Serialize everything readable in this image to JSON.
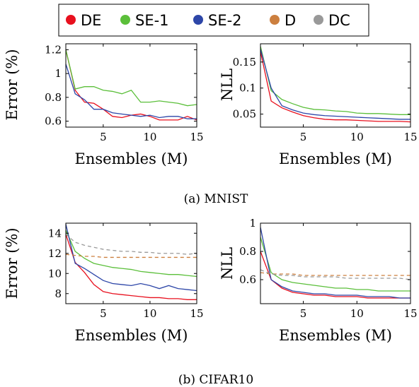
{
  "legend": [
    {
      "name": "DE",
      "color": "#e8101e"
    },
    {
      "name": "SE-1",
      "color": "#5bbf3a"
    },
    {
      "name": "SE-2",
      "color": "#2d46a8"
    },
    {
      "name": "D",
      "color": "#cc7f3f"
    },
    {
      "name": "DC",
      "color": "#999999"
    }
  ],
  "captions": [
    "(a) MNIST",
    "(b) CIFAR10"
  ],
  "chart_data": [
    {
      "type": "line",
      "dataset": "MNIST",
      "xlabel": "Ensembles (M)",
      "ylabel": "Error (%)",
      "xlim": [
        1,
        15
      ],
      "ylim": [
        0.55,
        1.25
      ],
      "xticks": [
        "5",
        "10",
        "15"
      ],
      "yticks": [
        "0.6",
        "0.8",
        "1",
        "1.2"
      ],
      "x": [
        1,
        2,
        3,
        4,
        5,
        6,
        7,
        8,
        9,
        10,
        11,
        12,
        13,
        14,
        15
      ],
      "series": [
        {
          "name": "DE",
          "color": "#e8101e",
          "dashed": false,
          "values": [
            1.2,
            0.86,
            0.76,
            0.75,
            0.7,
            0.64,
            0.63,
            0.65,
            0.66,
            0.64,
            0.61,
            0.61,
            0.61,
            0.64,
            0.61
          ]
        },
        {
          "name": "SE-1",
          "color": "#5bbf3a",
          "dashed": false,
          "values": [
            1.2,
            0.87,
            0.89,
            0.89,
            0.86,
            0.85,
            0.83,
            0.86,
            0.76,
            0.76,
            0.77,
            0.76,
            0.75,
            0.73,
            0.74
          ]
        },
        {
          "name": "SE-2",
          "color": "#2d46a8",
          "dashed": false,
          "values": [
            1.08,
            0.83,
            0.78,
            0.7,
            0.7,
            0.67,
            0.66,
            0.65,
            0.64,
            0.65,
            0.63,
            0.64,
            0.64,
            0.62,
            0.62
          ]
        }
      ]
    },
    {
      "type": "line",
      "dataset": "MNIST",
      "xlabel": "Ensembles (M)",
      "ylabel": "NLL",
      "xlim": [
        1,
        15
      ],
      "ylim": [
        0.025,
        0.185
      ],
      "xticks": [
        "5",
        "10",
        "15"
      ],
      "yticks": [
        "0.05",
        "0.1",
        "0.15"
      ],
      "x": [
        1,
        2,
        3,
        4,
        5,
        6,
        7,
        8,
        9,
        10,
        11,
        12,
        13,
        14,
        15
      ],
      "series": [
        {
          "name": "DE",
          "color": "#e8101e",
          "dashed": false,
          "values": [
            0.17,
            0.075,
            0.062,
            0.054,
            0.047,
            0.043,
            0.04,
            0.039,
            0.039,
            0.038,
            0.037,
            0.036,
            0.036,
            0.036,
            0.035
          ]
        },
        {
          "name": "SE-1",
          "color": "#5bbf3a",
          "dashed": false,
          "values": [
            0.18,
            0.095,
            0.078,
            0.07,
            0.063,
            0.059,
            0.058,
            0.056,
            0.055,
            0.052,
            0.051,
            0.051,
            0.05,
            0.049,
            0.049
          ]
        },
        {
          "name": "SE-2",
          "color": "#2d46a8",
          "dashed": false,
          "values": [
            0.175,
            0.1,
            0.066,
            0.058,
            0.052,
            0.049,
            0.047,
            0.046,
            0.045,
            0.044,
            0.043,
            0.042,
            0.041,
            0.04,
            0.04
          ]
        }
      ]
    },
    {
      "type": "line",
      "dataset": "CIFAR10",
      "xlabel": "Ensembles (M)",
      "ylabel": "Error (%)",
      "xlim": [
        1,
        15
      ],
      "ylim": [
        7,
        15
      ],
      "xticks": [
        "5",
        "10",
        "15"
      ],
      "yticks": [
        "8",
        "10",
        "12",
        "14"
      ],
      "x": [
        1,
        2,
        3,
        4,
        5,
        6,
        7,
        8,
        9,
        10,
        11,
        12,
        13,
        14,
        15
      ],
      "series": [
        {
          "name": "DE",
          "color": "#e8101e",
          "dashed": false,
          "values": [
            13.9,
            11.1,
            10.1,
            8.9,
            8.2,
            8.0,
            7.9,
            7.8,
            7.7,
            7.6,
            7.6,
            7.5,
            7.5,
            7.4,
            7.4
          ]
        },
        {
          "name": "SE-1",
          "color": "#5bbf3a",
          "dashed": false,
          "values": [
            14.3,
            12.2,
            11.5,
            11.0,
            10.8,
            10.6,
            10.5,
            10.4,
            10.2,
            10.1,
            10.0,
            9.9,
            9.9,
            9.8,
            9.7
          ]
        },
        {
          "name": "SE-2",
          "color": "#2d46a8",
          "dashed": false,
          "values": [
            14.9,
            11.0,
            10.5,
            9.9,
            9.3,
            9.0,
            8.9,
            8.8,
            9.0,
            8.8,
            8.5,
            8.8,
            8.5,
            8.4,
            8.3
          ]
        },
        {
          "name": "D",
          "color": "#cc7f3f",
          "dashed": true,
          "values": [
            11.9,
            11.8,
            11.7,
            11.7,
            11.6,
            11.6,
            11.6,
            11.6,
            11.6,
            11.6,
            11.6,
            11.6,
            11.6,
            11.6,
            11.6
          ]
        },
        {
          "name": "DC",
          "color": "#999999",
          "dashed": true,
          "values": [
            13.9,
            13.1,
            12.8,
            12.6,
            12.4,
            12.3,
            12.2,
            12.2,
            12.1,
            12.1,
            12.0,
            12.0,
            12.0,
            11.9,
            12.0
          ]
        }
      ]
    },
    {
      "type": "line",
      "dataset": "CIFAR10",
      "xlabel": "Ensembles (M)",
      "ylabel": "NLL",
      "xlim": [
        1,
        15
      ],
      "ylim": [
        0.43,
        1.0
      ],
      "xticks": [
        "5",
        "10",
        "15"
      ],
      "yticks": [
        "0.6",
        "0.8",
        "1"
      ],
      "x": [
        1,
        2,
        3,
        4,
        5,
        6,
        7,
        8,
        9,
        10,
        11,
        12,
        13,
        14,
        15
      ],
      "series": [
        {
          "name": "DE",
          "color": "#e8101e",
          "dashed": false,
          "values": [
            0.8,
            0.6,
            0.54,
            0.51,
            0.5,
            0.49,
            0.49,
            0.48,
            0.48,
            0.48,
            0.47,
            0.47,
            0.47,
            0.47,
            0.47
          ]
        },
        {
          "name": "SE-1",
          "color": "#5bbf3a",
          "dashed": false,
          "values": [
            0.9,
            0.65,
            0.6,
            0.58,
            0.57,
            0.56,
            0.55,
            0.54,
            0.54,
            0.53,
            0.53,
            0.52,
            0.52,
            0.52,
            0.52
          ]
        },
        {
          "name": "SE-2",
          "color": "#2d46a8",
          "dashed": false,
          "values": [
            0.97,
            0.6,
            0.55,
            0.52,
            0.51,
            0.5,
            0.5,
            0.49,
            0.49,
            0.49,
            0.48,
            0.48,
            0.48,
            0.47,
            0.47
          ]
        },
        {
          "name": "D",
          "color": "#cc7f3f",
          "dashed": true,
          "values": [
            0.65,
            0.64,
            0.64,
            0.64,
            0.63,
            0.63,
            0.63,
            0.63,
            0.63,
            0.63,
            0.63,
            0.63,
            0.63,
            0.63,
            0.63
          ]
        },
        {
          "name": "DC",
          "color": "#999999",
          "dashed": true,
          "values": [
            0.67,
            0.64,
            0.63,
            0.63,
            0.62,
            0.62,
            0.62,
            0.62,
            0.61,
            0.61,
            0.61,
            0.61,
            0.61,
            0.61,
            0.6
          ]
        }
      ]
    }
  ]
}
